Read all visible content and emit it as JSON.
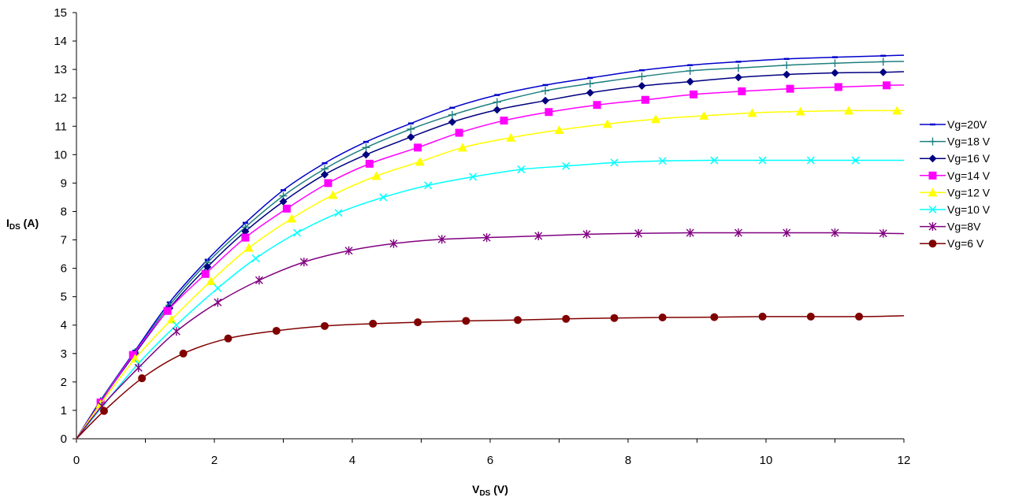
{
  "chart_data": {
    "type": "line",
    "xlabel": {
      "main": "V",
      "sub": "DS",
      "unit": " (V)"
    },
    "ylabel": {
      "main": "I",
      "sub": "DS",
      "unit": " (A)"
    },
    "xlim": [
      0,
      12
    ],
    "ylim": [
      0,
      15
    ],
    "xticks": [
      "0",
      "2",
      "4",
      "6",
      "8",
      "10",
      "12"
    ],
    "yticks": [
      "0",
      "1",
      "2",
      "3",
      "4",
      "5",
      "6",
      "7",
      "8",
      "9",
      "10",
      "11",
      "12",
      "13",
      "14",
      "15"
    ],
    "grid": false,
    "legend_position": "right",
    "series": [
      {
        "name": "Vg=20V",
        "color": "#0000cc",
        "marker": "dash",
        "x": [
          0,
          0.35,
          0.85,
          1.35,
          1.9,
          2.45,
          3.0,
          3.6,
          4.2,
          4.85,
          5.45,
          6.1,
          6.8,
          7.45,
          8.2,
          8.9,
          9.6,
          10.3,
          11.0,
          11.7,
          12.0
        ],
        "y": [
          0,
          1.35,
          3.1,
          4.8,
          6.3,
          7.6,
          8.75,
          9.7,
          10.45,
          11.1,
          11.65,
          12.1,
          12.45,
          12.7,
          12.97,
          13.15,
          13.27,
          13.37,
          13.43,
          13.48,
          13.5
        ]
      },
      {
        "name": "Vg=18 V",
        "color": "#1f7f7f",
        "marker": "plus",
        "x": [
          0,
          0.35,
          0.85,
          1.35,
          1.9,
          2.45,
          3.0,
          3.6,
          4.2,
          4.85,
          5.45,
          6.1,
          6.8,
          7.45,
          8.2,
          8.9,
          9.6,
          10.3,
          11.0,
          11.7,
          12.0
        ],
        "y": [
          0,
          1.33,
          3.05,
          4.7,
          6.2,
          7.45,
          8.55,
          9.5,
          10.25,
          10.9,
          11.4,
          11.85,
          12.25,
          12.5,
          12.75,
          12.95,
          13.05,
          13.15,
          13.22,
          13.27,
          13.28
        ]
      },
      {
        "name": "Vg=16 V",
        "color": "#000080",
        "marker": "diamond",
        "x": [
          0,
          0.35,
          0.85,
          1.35,
          1.9,
          2.45,
          3.0,
          3.6,
          4.2,
          4.85,
          5.45,
          6.1,
          6.8,
          7.45,
          8.2,
          8.9,
          9.6,
          10.3,
          11.0,
          11.7,
          12.0
        ],
        "y": [
          0,
          1.3,
          3.0,
          4.6,
          6.05,
          7.3,
          8.35,
          9.3,
          10.0,
          10.62,
          11.15,
          11.58,
          11.9,
          12.18,
          12.42,
          12.57,
          12.72,
          12.82,
          12.88,
          12.9,
          12.92
        ]
      },
      {
        "name": "Vg=14 V",
        "color": "#ff00ff",
        "marker": "square",
        "x": [
          0,
          0.35,
          0.82,
          1.32,
          1.87,
          2.45,
          3.05,
          3.65,
          4.25,
          4.95,
          5.55,
          6.2,
          6.85,
          7.55,
          8.25,
          8.95,
          9.65,
          10.35,
          11.05,
          11.75,
          12.0
        ],
        "y": [
          0,
          1.28,
          2.95,
          4.5,
          5.8,
          7.08,
          8.1,
          9.0,
          9.68,
          10.25,
          10.77,
          11.2,
          11.5,
          11.75,
          11.93,
          12.12,
          12.23,
          12.32,
          12.38,
          12.44,
          12.45
        ]
      },
      {
        "name": "Vg=12 V",
        "color": "#ffff00",
        "marker": "triangle",
        "x": [
          0,
          0.35,
          0.85,
          1.38,
          1.95,
          2.5,
          3.12,
          3.72,
          4.35,
          4.98,
          5.6,
          6.3,
          7.0,
          7.7,
          8.4,
          9.1,
          9.8,
          10.5,
          11.2,
          11.9,
          12.0
        ],
        "y": [
          0,
          1.22,
          2.82,
          4.2,
          5.55,
          6.72,
          7.75,
          8.58,
          9.25,
          9.75,
          10.25,
          10.6,
          10.87,
          11.08,
          11.25,
          11.37,
          11.47,
          11.52,
          11.55,
          11.55,
          11.55
        ]
      },
      {
        "name": "Vg=10 V",
        "color": "#00ffff",
        "marker": "x",
        "x": [
          0,
          0.38,
          0.9,
          1.45,
          2.05,
          2.6,
          3.2,
          3.8,
          4.45,
          5.1,
          5.75,
          6.45,
          7.1,
          7.8,
          8.5,
          9.25,
          9.95,
          10.65,
          11.3,
          12.0
        ],
        "y": [
          0,
          1.15,
          2.65,
          4.0,
          5.3,
          6.35,
          7.25,
          7.95,
          8.5,
          8.92,
          9.22,
          9.48,
          9.6,
          9.72,
          9.78,
          9.8,
          9.8,
          9.8,
          9.8,
          9.8
        ]
      },
      {
        "name": "Vg=8V",
        "color": "#800080",
        "marker": "star",
        "x": [
          0,
          0.37,
          0.9,
          1.45,
          2.05,
          2.65,
          3.3,
          3.95,
          4.6,
          5.3,
          5.95,
          6.7,
          7.4,
          8.15,
          8.9,
          9.6,
          10.3,
          11.0,
          11.7,
          12.0
        ],
        "y": [
          0,
          1.15,
          2.5,
          3.78,
          4.8,
          5.58,
          6.22,
          6.62,
          6.87,
          7.02,
          7.08,
          7.14,
          7.2,
          7.23,
          7.25,
          7.25,
          7.25,
          7.25,
          7.23,
          7.22
        ]
      },
      {
        "name": "Vg=6 V",
        "color": "#800000",
        "marker": "circle",
        "x": [
          0,
          0.4,
          0.95,
          1.55,
          2.2,
          2.9,
          3.6,
          4.3,
          4.95,
          5.65,
          6.4,
          7.1,
          7.8,
          8.5,
          9.25,
          9.95,
          10.65,
          11.35,
          12.0
        ],
        "y": [
          0,
          0.98,
          2.13,
          3.0,
          3.53,
          3.8,
          3.97,
          4.05,
          4.1,
          4.15,
          4.18,
          4.22,
          4.25,
          4.27,
          4.28,
          4.3,
          4.3,
          4.3,
          4.33
        ]
      }
    ]
  }
}
